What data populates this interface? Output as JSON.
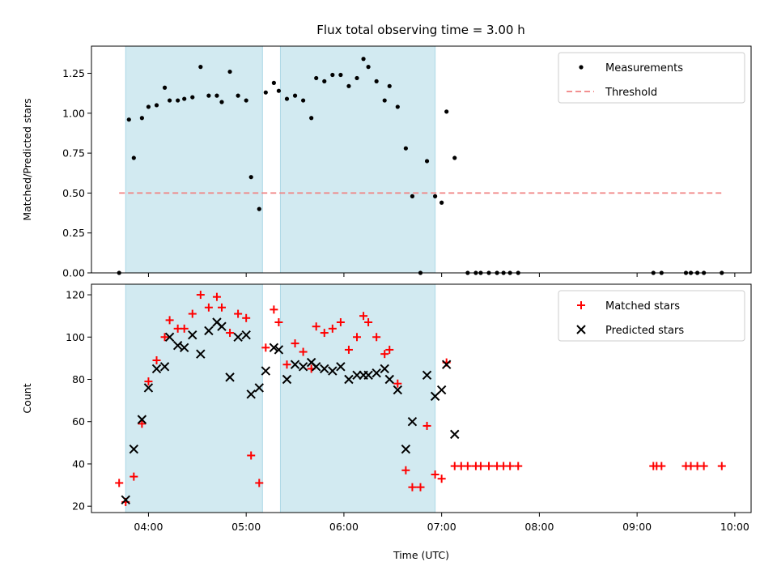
{
  "chart_data": [
    {
      "type": "scatter",
      "title": "Flux total observing time = 3.00 h",
      "xlabel": "",
      "ylabel": "Matched/Predicted stars",
      "xlim": [
        "03:25",
        "10:10"
      ],
      "ylim": [
        0,
        1.42
      ],
      "yticks": [
        "0.00",
        "0.25",
        "0.50",
        "0.75",
        "1.00",
        "1.25"
      ],
      "xticks": [
        "04:00",
        "05:00",
        "06:00",
        "07:00",
        "08:00",
        "09:00",
        "10:00"
      ],
      "shaded_intervals": [
        [
          "03:46",
          "05:10"
        ],
        [
          "05:21",
          "06:56"
        ]
      ],
      "legend": {
        "position": "top-right",
        "entries": [
          "Measurements",
          "Threshold"
        ]
      },
      "series": [
        {
          "name": "Measurements",
          "marker": "dot",
          "color": "#000000",
          "points": [
            [
              "03:42",
              0.0
            ],
            [
              "03:48",
              0.96
            ],
            [
              "03:51",
              0.72
            ],
            [
              "03:56",
              0.97
            ],
            [
              "04:00",
              1.04
            ],
            [
              "04:05",
              1.05
            ],
            [
              "04:10",
              1.16
            ],
            [
              "04:13",
              1.08
            ],
            [
              "04:18",
              1.08
            ],
            [
              "04:22",
              1.09
            ],
            [
              "04:27",
              1.1
            ],
            [
              "04:32",
              1.29
            ],
            [
              "04:37",
              1.11
            ],
            [
              "04:42",
              1.11
            ],
            [
              "04:45",
              1.07
            ],
            [
              "04:50",
              1.26
            ],
            [
              "04:55",
              1.11
            ],
            [
              "05:00",
              1.08
            ],
            [
              "05:03",
              0.6
            ],
            [
              "05:08",
              0.4
            ],
            [
              "05:12",
              1.13
            ],
            [
              "05:17",
              1.19
            ],
            [
              "05:20",
              1.14
            ],
            [
              "05:25",
              1.09
            ],
            [
              "05:30",
              1.11
            ],
            [
              "05:35",
              1.08
            ],
            [
              "05:40",
              0.97
            ],
            [
              "05:43",
              1.22
            ],
            [
              "05:48",
              1.2
            ],
            [
              "05:53",
              1.24
            ],
            [
              "05:58",
              1.24
            ],
            [
              "06:03",
              1.17
            ],
            [
              "06:08",
              1.22
            ],
            [
              "06:12",
              1.34
            ],
            [
              "06:15",
              1.29
            ],
            [
              "06:20",
              1.2
            ],
            [
              "06:25",
              1.08
            ],
            [
              "06:28",
              1.17
            ],
            [
              "06:33",
              1.04
            ],
            [
              "06:38",
              0.78
            ],
            [
              "06:42",
              0.48
            ],
            [
              "06:47",
              0.0
            ],
            [
              "06:51",
              0.7
            ],
            [
              "06:56",
              0.48
            ],
            [
              "07:00",
              0.44
            ],
            [
              "07:03",
              1.01
            ],
            [
              "07:08",
              0.72
            ],
            [
              "07:16",
              0.0
            ],
            [
              "07:21",
              0.0
            ],
            [
              "07:24",
              0.0
            ],
            [
              "07:29",
              0.0
            ],
            [
              "07:34",
              0.0
            ],
            [
              "07:38",
              0.0
            ],
            [
              "07:42",
              0.0
            ],
            [
              "07:47",
              0.0
            ],
            [
              "09:10",
              0.0
            ],
            [
              "09:15",
              0.0
            ],
            [
              "09:30",
              0.0
            ],
            [
              "09:33",
              0.0
            ],
            [
              "09:37",
              0.0
            ],
            [
              "09:41",
              0.0
            ],
            [
              "09:52",
              0.0
            ]
          ]
        },
        {
          "name": "Threshold",
          "style": "dashed",
          "color": "#f08080",
          "points": [
            [
              "03:42",
              0.5
            ],
            [
              "09:52",
              0.5
            ]
          ]
        }
      ]
    },
    {
      "type": "scatter",
      "title": "",
      "xlabel": "Time (UTC)",
      "ylabel": "Count",
      "xlim": [
        "03:25",
        "10:10"
      ],
      "ylim": [
        17,
        125
      ],
      "yticks": [
        "20",
        "40",
        "60",
        "80",
        "100",
        "120"
      ],
      "xticks": [
        "04:00",
        "05:00",
        "06:00",
        "07:00",
        "08:00",
        "09:00",
        "10:00"
      ],
      "shaded_intervals": [
        [
          "03:46",
          "05:10"
        ],
        [
          "05:21",
          "06:56"
        ]
      ],
      "legend": {
        "position": "top-right",
        "entries": [
          "Matched stars",
          "Predicted stars"
        ]
      },
      "series": [
        {
          "name": "Matched stars",
          "marker": "plus",
          "color": "#ff0000",
          "points": [
            [
              "03:42",
              31
            ],
            [
              "03:46",
              22
            ],
            [
              "03:51",
              34
            ],
            [
              "03:56",
              59
            ],
            [
              "04:00",
              79
            ],
            [
              "04:05",
              89
            ],
            [
              "04:10",
              100
            ],
            [
              "04:13",
              108
            ],
            [
              "04:18",
              104
            ],
            [
              "04:22",
              104
            ],
            [
              "04:27",
              111
            ],
            [
              "04:32",
              120
            ],
            [
              "04:37",
              114
            ],
            [
              "04:42",
              119
            ],
            [
              "04:45",
              114
            ],
            [
              "04:50",
              102
            ],
            [
              "04:55",
              111
            ],
            [
              "05:00",
              109
            ],
            [
              "05:03",
              44
            ],
            [
              "05:08",
              31
            ],
            [
              "05:12",
              95
            ],
            [
              "05:17",
              113
            ],
            [
              "05:20",
              107
            ],
            [
              "05:25",
              87
            ],
            [
              "05:30",
              97
            ],
            [
              "05:35",
              93
            ],
            [
              "05:40",
              85
            ],
            [
              "05:43",
              105
            ],
            [
              "05:48",
              102
            ],
            [
              "05:53",
              104
            ],
            [
              "05:58",
              107
            ],
            [
              "06:03",
              94
            ],
            [
              "06:08",
              100
            ],
            [
              "06:12",
              110
            ],
            [
              "06:15",
              107
            ],
            [
              "06:20",
              100
            ],
            [
              "06:25",
              92
            ],
            [
              "06:28",
              94
            ],
            [
              "06:33",
              78
            ],
            [
              "06:38",
              37
            ],
            [
              "06:42",
              29
            ],
            [
              "06:47",
              29
            ],
            [
              "06:51",
              58
            ],
            [
              "06:56",
              35
            ],
            [
              "07:00",
              33
            ],
            [
              "07:03",
              88
            ],
            [
              "07:08",
              39
            ],
            [
              "07:12",
              39
            ],
            [
              "07:16",
              39
            ],
            [
              "07:21",
              39
            ],
            [
              "07:24",
              39
            ],
            [
              "07:29",
              39
            ],
            [
              "07:34",
              39
            ],
            [
              "07:38",
              39
            ],
            [
              "07:42",
              39
            ],
            [
              "07:47",
              39
            ],
            [
              "09:10",
              39
            ],
            [
              "09:12",
              39
            ],
            [
              "09:15",
              39
            ],
            [
              "09:30",
              39
            ],
            [
              "09:33",
              39
            ],
            [
              "09:37",
              39
            ],
            [
              "09:41",
              39
            ],
            [
              "09:52",
              39
            ]
          ]
        },
        {
          "name": "Predicted stars",
          "marker": "x",
          "color": "#000000",
          "points": [
            [
              "03:46",
              23
            ],
            [
              "03:51",
              47
            ],
            [
              "03:56",
              61
            ],
            [
              "04:00",
              76
            ],
            [
              "04:05",
              85
            ],
            [
              "04:10",
              86
            ],
            [
              "04:13",
              100
            ],
            [
              "04:18",
              96
            ],
            [
              "04:22",
              95
            ],
            [
              "04:27",
              101
            ],
            [
              "04:32",
              92
            ],
            [
              "04:37",
              103
            ],
            [
              "04:42",
              107
            ],
            [
              "04:45",
              105
            ],
            [
              "04:50",
              81
            ],
            [
              "04:55",
              100
            ],
            [
              "05:00",
              101
            ],
            [
              "05:03",
              73
            ],
            [
              "05:08",
              76
            ],
            [
              "05:12",
              84
            ],
            [
              "05:17",
              95
            ],
            [
              "05:20",
              94
            ],
            [
              "05:25",
              80
            ],
            [
              "05:30",
              87
            ],
            [
              "05:35",
              86
            ],
            [
              "05:40",
              88
            ],
            [
              "05:43",
              86
            ],
            [
              "05:48",
              85
            ],
            [
              "05:53",
              84
            ],
            [
              "05:58",
              86
            ],
            [
              "06:03",
              80
            ],
            [
              "06:08",
              82
            ],
            [
              "06:12",
              82
            ],
            [
              "06:15",
              82
            ],
            [
              "06:20",
              83
            ],
            [
              "06:25",
              85
            ],
            [
              "06:28",
              80
            ],
            [
              "06:33",
              75
            ],
            [
              "06:38",
              47
            ],
            [
              "06:42",
              60
            ],
            [
              "06:51",
              82
            ],
            [
              "06:56",
              72
            ],
            [
              "07:00",
              75
            ],
            [
              "07:03",
              87
            ],
            [
              "07:08",
              54
            ]
          ]
        }
      ]
    }
  ],
  "style": {
    "shade_color": "#add8e6",
    "frame_color": "#000000"
  }
}
